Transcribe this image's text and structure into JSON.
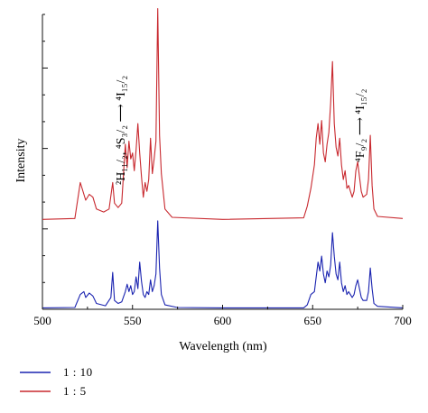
{
  "chart_data": {
    "type": "line",
    "title": "",
    "xlabel": "Wavelength (nm)",
    "ylabel": "Intensity",
    "xlim": [
      500,
      700
    ],
    "xticks": [
      500,
      550,
      600,
      650,
      700
    ],
    "ylim": [
      0,
      1.0
    ],
    "y_tick_labels_shown": false,
    "grid": false,
    "legend_position": "bottom-left, below plot",
    "annotations": [
      {
        "text": "²H₁₁/₂, ⁴S₃/₂ ⟶ ⁴I₁₅/₂",
        "near_x": 545
      },
      {
        "text": "⁴F₉/₂ ⟶ ⁴I₁₅/₂",
        "near_x": 670
      }
    ],
    "series": [
      {
        "name": "1 : 10",
        "color": "#1a23b0",
        "offset": 0.0,
        "points": [
          [
            500,
            0.005
          ],
          [
            518,
            0.006
          ],
          [
            521,
            0.05
          ],
          [
            523,
            0.06
          ],
          [
            524,
            0.04
          ],
          [
            526,
            0.055
          ],
          [
            528,
            0.045
          ],
          [
            530,
            0.02
          ],
          [
            535,
            0.012
          ],
          [
            538,
            0.04
          ],
          [
            539,
            0.125
          ],
          [
            540,
            0.03
          ],
          [
            542,
            0.02
          ],
          [
            544,
            0.025
          ],
          [
            546,
            0.06
          ],
          [
            547,
            0.085
          ],
          [
            548,
            0.06
          ],
          [
            549,
            0.08
          ],
          [
            550,
            0.05
          ],
          [
            551,
            0.06
          ],
          [
            552,
            0.11
          ],
          [
            553,
            0.07
          ],
          [
            554,
            0.16
          ],
          [
            555,
            0.095
          ],
          [
            556,
            0.05
          ],
          [
            557,
            0.04
          ],
          [
            558,
            0.06
          ],
          [
            559,
            0.05
          ],
          [
            560,
            0.1
          ],
          [
            561,
            0.06
          ],
          [
            562,
            0.08
          ],
          [
            563,
            0.12
          ],
          [
            564,
            0.3
          ],
          [
            565,
            0.14
          ],
          [
            566,
            0.05
          ],
          [
            568,
            0.015
          ],
          [
            575,
            0.006
          ],
          [
            600,
            0.005
          ],
          [
            645,
            0.005
          ],
          [
            647,
            0.015
          ],
          [
            649,
            0.05
          ],
          [
            651,
            0.06
          ],
          [
            652,
            0.11
          ],
          [
            653,
            0.16
          ],
          [
            654,
            0.13
          ],
          [
            655,
            0.18
          ],
          [
            656,
            0.12
          ],
          [
            657,
            0.09
          ],
          [
            658,
            0.13
          ],
          [
            659,
            0.11
          ],
          [
            660,
            0.15
          ],
          [
            661,
            0.26
          ],
          [
            662,
            0.18
          ],
          [
            663,
            0.12
          ],
          [
            664,
            0.1
          ],
          [
            665,
            0.16
          ],
          [
            666,
            0.09
          ],
          [
            667,
            0.06
          ],
          [
            668,
            0.08
          ],
          [
            669,
            0.05
          ],
          [
            670,
            0.06
          ],
          [
            672,
            0.04
          ],
          [
            673,
            0.05
          ],
          [
            674,
            0.08
          ],
          [
            675,
            0.1
          ],
          [
            676,
            0.07
          ],
          [
            677,
            0.04
          ],
          [
            678,
            0.03
          ],
          [
            680,
            0.03
          ],
          [
            681,
            0.06
          ],
          [
            682,
            0.14
          ],
          [
            683,
            0.07
          ],
          [
            684,
            0.02
          ],
          [
            686,
            0.01
          ],
          [
            700,
            0.005
          ]
        ]
      },
      {
        "name": "1 : 5",
        "color": "#c8282e",
        "offset": 0.3,
        "points": [
          [
            500,
            0.005
          ],
          [
            518,
            0.008
          ],
          [
            521,
            0.13
          ],
          [
            522,
            0.11
          ],
          [
            524,
            0.07
          ],
          [
            526,
            0.09
          ],
          [
            528,
            0.08
          ],
          [
            530,
            0.04
          ],
          [
            534,
            0.03
          ],
          [
            537,
            0.04
          ],
          [
            539,
            0.13
          ],
          [
            540,
            0.06
          ],
          [
            542,
            0.045
          ],
          [
            544,
            0.06
          ],
          [
            546,
            0.26
          ],
          [
            547,
            0.18
          ],
          [
            548,
            0.27
          ],
          [
            549,
            0.21
          ],
          [
            550,
            0.23
          ],
          [
            551,
            0.17
          ],
          [
            552,
            0.24
          ],
          [
            553,
            0.33
          ],
          [
            554,
            0.23
          ],
          [
            555,
            0.15
          ],
          [
            556,
            0.08
          ],
          [
            557,
            0.13
          ],
          [
            558,
            0.1
          ],
          [
            559,
            0.14
          ],
          [
            560,
            0.28
          ],
          [
            561,
            0.16
          ],
          [
            562,
            0.21
          ],
          [
            563,
            0.27
          ],
          [
            564,
            0.72
          ],
          [
            565,
            0.29
          ],
          [
            566,
            0.16
          ],
          [
            568,
            0.04
          ],
          [
            572,
            0.012
          ],
          [
            600,
            0.005
          ],
          [
            645,
            0.01
          ],
          [
            647,
            0.05
          ],
          [
            649,
            0.11
          ],
          [
            651,
            0.19
          ],
          [
            652,
            0.28
          ],
          [
            653,
            0.33
          ],
          [
            654,
            0.26
          ],
          [
            655,
            0.34
          ],
          [
            656,
            0.23
          ],
          [
            657,
            0.2
          ],
          [
            658,
            0.26
          ],
          [
            659,
            0.3
          ],
          [
            660,
            0.4
          ],
          [
            661,
            0.54
          ],
          [
            662,
            0.33
          ],
          [
            663,
            0.25
          ],
          [
            664,
            0.22
          ],
          [
            665,
            0.28
          ],
          [
            666,
            0.19
          ],
          [
            667,
            0.14
          ],
          [
            668,
            0.17
          ],
          [
            669,
            0.11
          ],
          [
            670,
            0.12
          ],
          [
            672,
            0.08
          ],
          [
            673,
            0.1
          ],
          [
            674,
            0.17
          ],
          [
            675,
            0.2
          ],
          [
            676,
            0.15
          ],
          [
            677,
            0.1
          ],
          [
            678,
            0.08
          ],
          [
            680,
            0.09
          ],
          [
            681,
            0.14
          ],
          [
            682,
            0.29
          ],
          [
            683,
            0.12
          ],
          [
            684,
            0.04
          ],
          [
            686,
            0.015
          ],
          [
            700,
            0.008
          ]
        ]
      }
    ]
  }
}
